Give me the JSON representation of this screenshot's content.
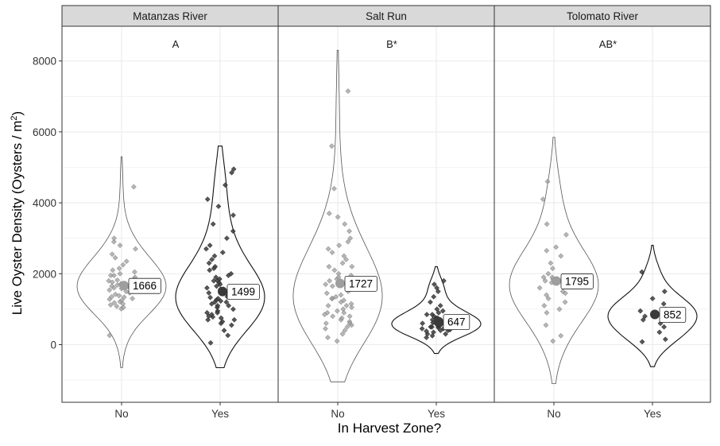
{
  "chart_data": {
    "type": "violin",
    "title": "",
    "xlabel": "In Harvest Zone?",
    "ylabel_main": "Live Oyster Density (Oysters / m",
    "ylabel_sup": "2",
    "ylabel_end": ")",
    "ylim": [
      -1600,
      9700
    ],
    "y_ticks": [
      "0",
      "2000",
      "4000",
      "6000",
      "8000"
    ],
    "y_tick_values": [
      0,
      2000,
      4000,
      6000,
      8000
    ],
    "colors": {
      "no": "#9e9e9e",
      "yes": "#3a3a3a",
      "strip": "#d9d9d9",
      "grid": "#ebebeb"
    },
    "panels": [
      {
        "name": "Matanzas River",
        "letter": "A",
        "groups": [
          {
            "x": "No",
            "mean": 1666,
            "label": "1666",
            "violin_range": [
              -650,
              5300
            ],
            "points": [
              1010,
              1050,
              1120,
              1180,
              1210,
              1250,
              1280,
              1300,
              1340,
              1380,
              1420,
              1460,
              1500,
              1540,
              1580,
              1600,
              1620,
              1650,
              1700,
              1720,
              1760,
              1800,
              1850,
              1900,
              1950,
              2000,
              2050,
              2100,
              2150,
              2250,
              2350,
              2450,
              2550,
              2700,
              2800,
              2900,
              1150,
              1080,
              1350,
              1620,
              1680,
              1820,
              260,
              4450,
              3000,
              1500,
              1700,
              1950
            ]
          },
          {
            "x": "Yes",
            "mean": 1499,
            "label": "1499",
            "violin_range": [
              -650,
              5600
            ],
            "points": [
              50,
              260,
              400,
              550,
              600,
              650,
              700,
              750,
              780,
              800,
              850,
              900,
              950,
              1000,
              1050,
              1100,
              1150,
              1200,
              1230,
              1260,
              1300,
              1330,
              1360,
              1400,
              1430,
              1460,
              1500,
              1530,
              1560,
              1600,
              1650,
              1700,
              1750,
              1800,
              1850,
              1900,
              1950,
              2000,
              2100,
              2200,
              2300,
              2400,
              2500,
              2600,
              2700,
              2800,
              3000,
              3200,
              3400,
              3650,
              3900,
              4100,
              4500,
              4850,
              4950,
              1200,
              1350,
              1800,
              2150,
              900,
              1100,
              700
            ]
          }
        ]
      },
      {
        "name": "Salt Run",
        "letter": "B*",
        "groups": [
          {
            "x": "No",
            "mean": 1727,
            "label": "1727",
            "violin_range": [
              -1050,
              8300
            ],
            "points": [
              100,
              200,
              300,
              400,
              450,
              500,
              550,
              600,
              650,
              700,
              750,
              800,
              850,
              900,
              950,
              1000,
              1050,
              1100,
              1150,
              1200,
              1250,
              1300,
              1350,
              1400,
              1450,
              1500,
              1550,
              1600,
              1650,
              1700,
              1750,
              1800,
              1850,
              1900,
              1950,
              2000,
              2100,
              2200,
              2300,
              2400,
              2500,
              2600,
              2700,
              2800,
              2900,
              3000,
              3200,
              3400,
              3600,
              3700,
              4400,
              5600,
              7150,
              1100,
              900,
              1300,
              1700,
              2200,
              600,
              800
            ]
          },
          {
            "x": "Yes",
            "mean": 647,
            "label": "647",
            "violin_range": [
              -250,
              2200
            ],
            "points": [
              200,
              250,
              300,
              350,
              380,
              400,
              420,
              450,
              480,
              500,
              520,
              550,
              580,
              600,
              620,
              650,
              680,
              700,
              720,
              750,
              780,
              800,
              850,
              900,
              950,
              1000,
              1100,
              1200,
              1350,
              1500,
              1600,
              1700,
              1800,
              300,
              450,
              550,
              650,
              750,
              400,
              500,
              600,
              850
            ]
          }
        ]
      },
      {
        "name": "Tolomato River",
        "letter": "AB*",
        "groups": [
          {
            "x": "No",
            "mean": 1795,
            "label": "1795",
            "violin_range": [
              -1100,
              5850
            ],
            "points": [
              100,
              250,
              550,
              900,
              1000,
              1100,
              1200,
              1300,
              1400,
              1500,
              1600,
              1700,
              1750,
              1800,
              1850,
              1900,
              2000,
              2150,
              2300,
              2500,
              2650,
              2750,
              3100,
              3400,
              4100,
              4600,
              1450,
              1900
            ]
          },
          {
            "x": "Yes",
            "mean": 852,
            "label": "852",
            "violin_range": [
              -620,
              2800
            ],
            "points": [
              80,
              150,
              350,
              500,
              600,
              800,
              900,
              1000,
              1150,
              1300,
              1500,
              2050,
              700,
              950
            ]
          }
        ]
      }
    ]
  }
}
